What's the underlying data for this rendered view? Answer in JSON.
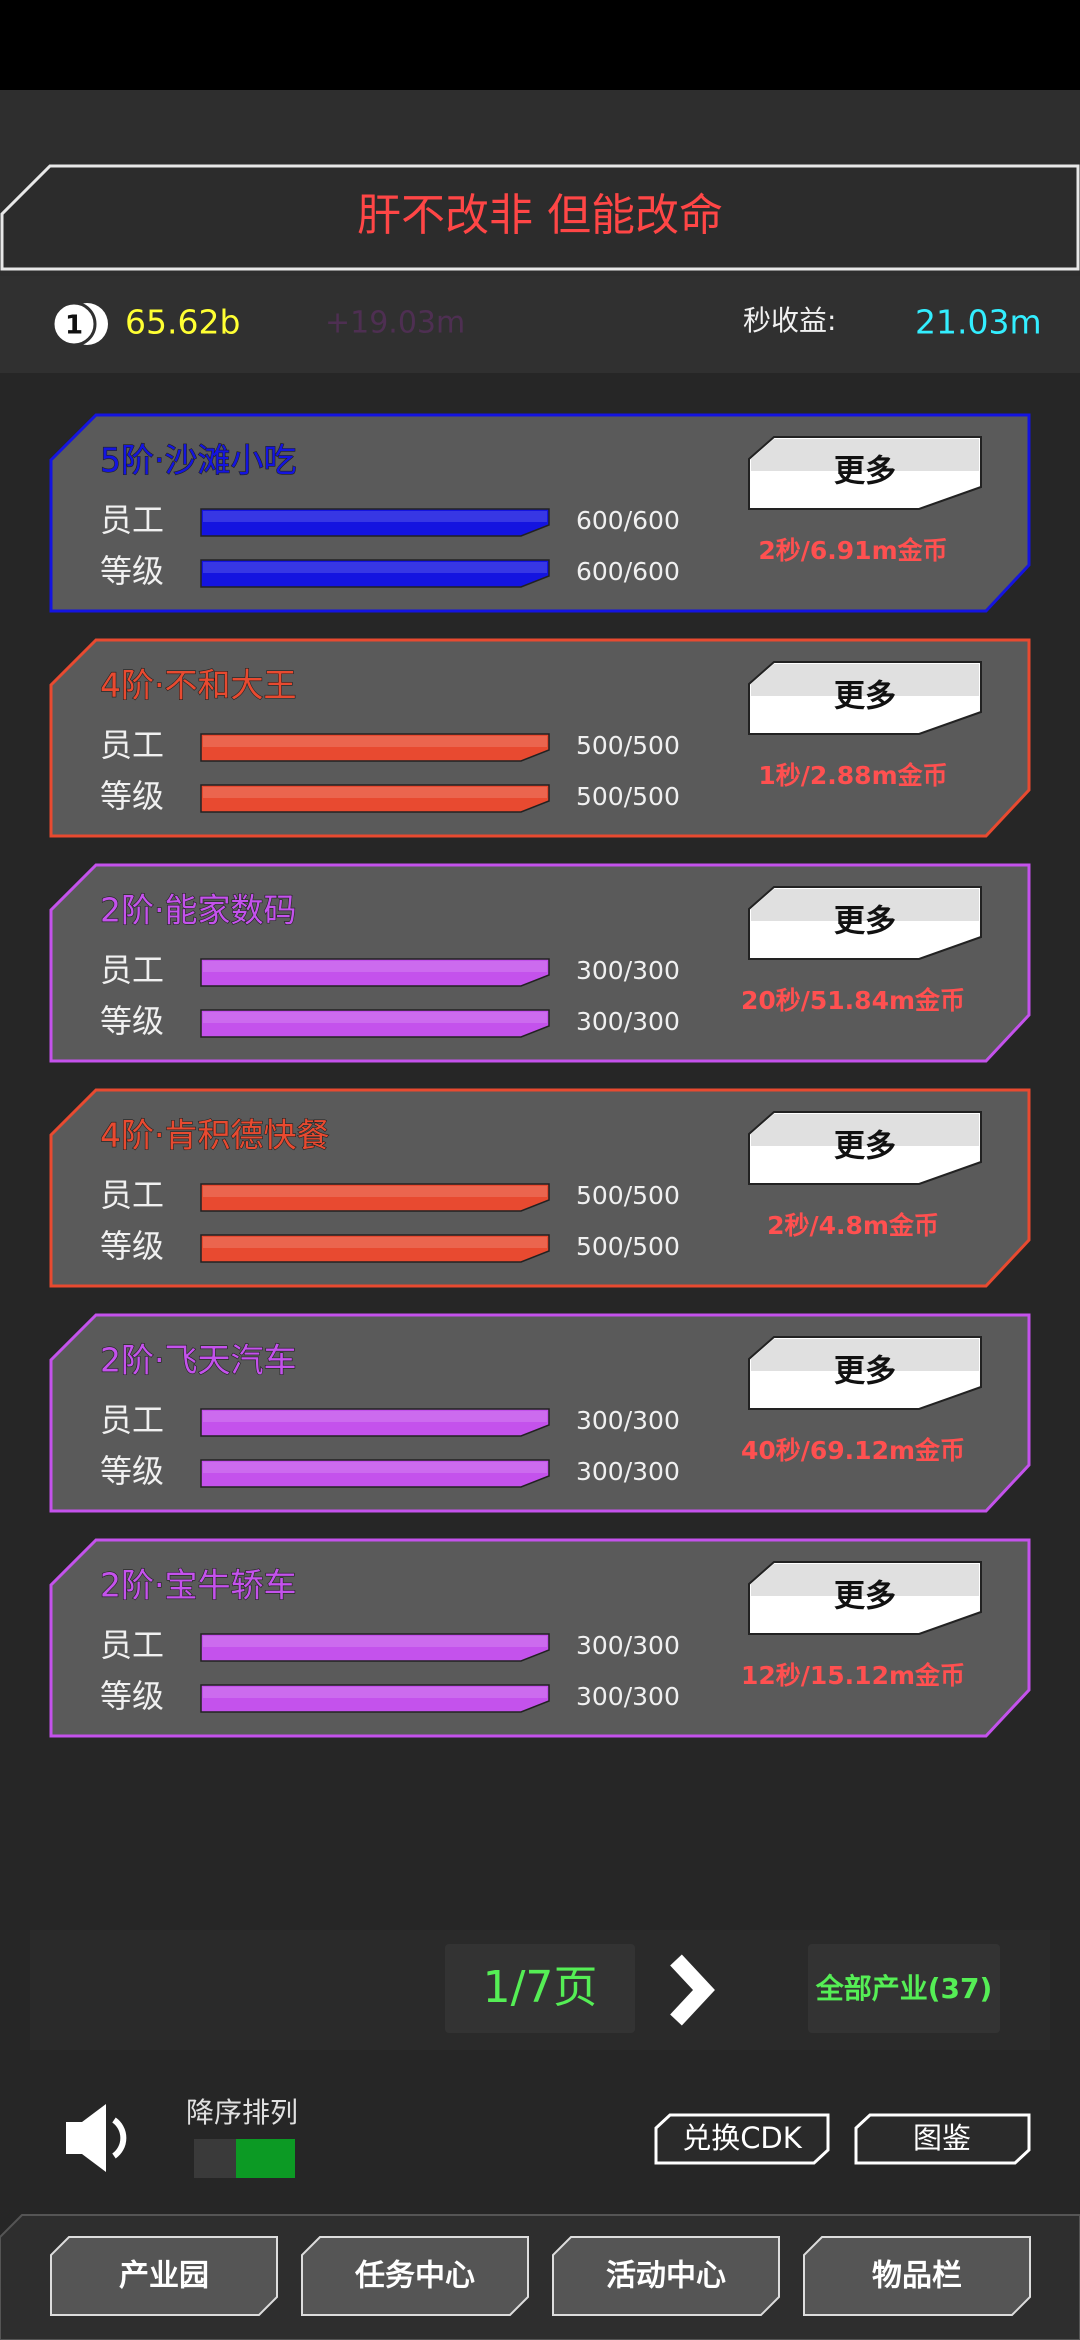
{
  "header": {
    "title": "肝不改非 但能改命"
  },
  "stats": {
    "coin_icon": "1",
    "coins": "65.62b",
    "gain": "+19.03m",
    "per_second_label": "秒收益:",
    "per_second": "21.03m"
  },
  "industries": [
    {
      "name": "5阶·沙滩小吃",
      "color": "#1414e0",
      "staff_label": "员工",
      "staff": "600/600",
      "level_label": "等级",
      "level": "600/600",
      "more": "更多",
      "income": "2秒/6.91m金币"
    },
    {
      "name": "4阶·不和大王",
      "color": "#e84a30",
      "staff_label": "员工",
      "staff": "500/500",
      "level_label": "等级",
      "level": "500/500",
      "more": "更多",
      "income": "1秒/2.88m金币"
    },
    {
      "name": "2阶·能家数码",
      "color": "#c452ec",
      "staff_label": "员工",
      "staff": "300/300",
      "level_label": "等级",
      "level": "300/300",
      "more": "更多",
      "income": "20秒/51.84m金币"
    },
    {
      "name": "4阶·肯积德快餐",
      "color": "#e84a30",
      "staff_label": "员工",
      "staff": "500/500",
      "level_label": "等级",
      "level": "500/500",
      "more": "更多",
      "income": "2秒/4.8m金币"
    },
    {
      "name": "2阶·飞天汽车",
      "color": "#c452ec",
      "staff_label": "员工",
      "staff": "300/300",
      "level_label": "等级",
      "level": "300/300",
      "more": "更多",
      "income": "40秒/69.12m金币"
    },
    {
      "name": "2阶·宝牛轿车",
      "color": "#c452ec",
      "staff_label": "员工",
      "staff": "300/300",
      "level_label": "等级",
      "level": "300/300",
      "more": "更多",
      "income": "12秒/15.12m金币"
    }
  ],
  "pager": {
    "page": "1/7页",
    "all": "全部产业(37)"
  },
  "sort": {
    "label": "降序排列"
  },
  "buttons": {
    "cdk": "兑换CDK",
    "atlas": "图鉴"
  },
  "tabs": [
    "产业园",
    "任务中心",
    "活动中心",
    "物品栏"
  ]
}
